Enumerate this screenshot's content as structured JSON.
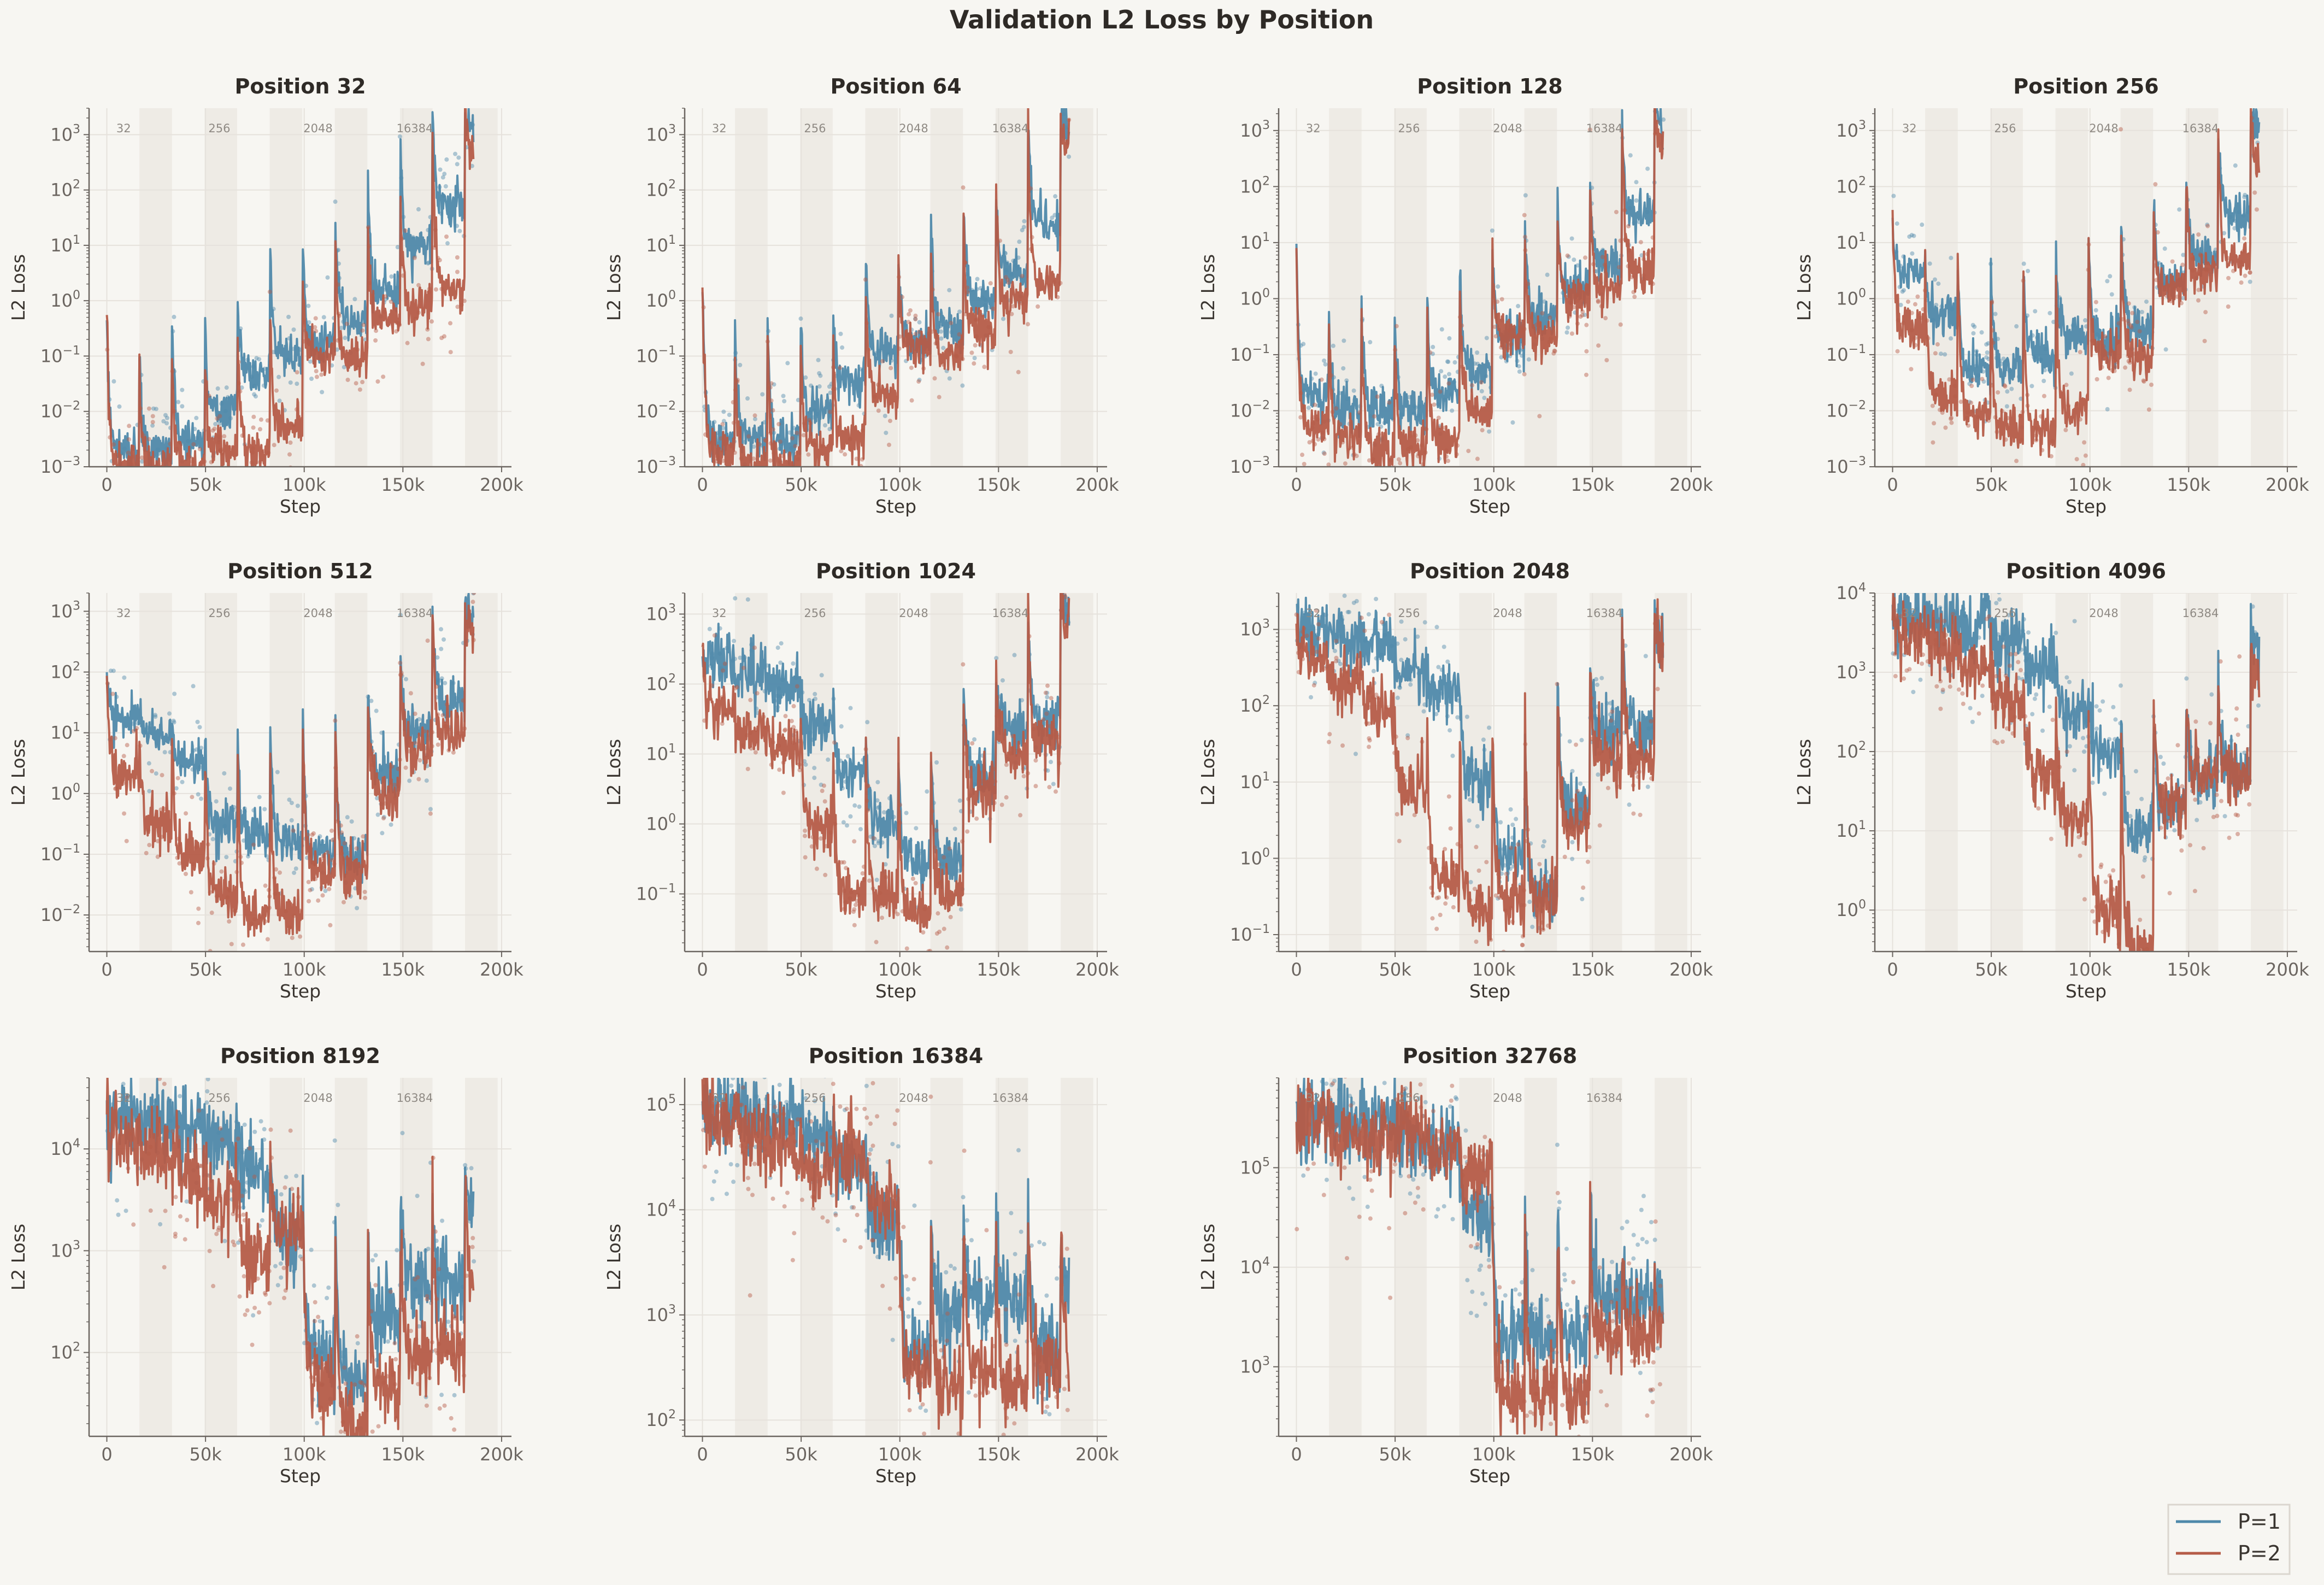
{
  "title": "Validation L2 Loss by Position",
  "legend": [
    {
      "label": "P=1",
      "color": "#4f89aa"
    },
    {
      "label": "P=2",
      "color": "#b55c48"
    }
  ],
  "chart_data": {
    "type": "line",
    "title": "Validation L2 Loss by Position",
    "xlabel": "Step",
    "ylabel": "L2 Loss",
    "x_unit": "thousand steps",
    "xlim": [
      -9,
      205
    ],
    "xticks": [
      0,
      50,
      100,
      150,
      200
    ],
    "xtick_labels": [
      "0",
      "50k",
      "100k",
      "150k",
      "200k"
    ],
    "yscale": "log",
    "grid": true,
    "legend_position": "bottom-right",
    "stage_length": 16.5,
    "data_end": 186,
    "shaded_ranges": [
      [
        16.5,
        33
      ],
      [
        49.5,
        66
      ],
      [
        82.5,
        99
      ],
      [
        115.5,
        132
      ],
      [
        148.5,
        165
      ],
      [
        181.5,
        198
      ]
    ],
    "stage_labels": [
      {
        "text": "32",
        "x": 8.5
      },
      {
        "text": "256",
        "x": 57
      },
      {
        "text": "2048",
        "x": 107
      },
      {
        "text": "16384",
        "x": 156
      }
    ],
    "subplots": [
      {
        "title": "Position 32",
        "ylim": [
          0.001,
          3000
        ],
        "series": [
          {
            "name": "P=1",
            "start": 0.5,
            "stage_levels": [
              0.002,
              0.002,
              0.003,
              0.01,
              0.05,
              0.1,
              0.15,
              0.5,
              1.5,
              10,
              50,
              1000
            ],
            "boundary_peaks": [
              0.1,
              0.4,
              0.5,
              3,
              20,
              30,
              150,
              300,
              1500,
              3000,
              3000
            ]
          },
          {
            "name": "P=2",
            "start": 0.6,
            "stage_levels": [
              0.001,
              0.001,
              0.001,
              0.002,
              0.002,
              0.005,
              0.1,
              0.1,
              0.4,
              0.8,
              1.5,
              500
            ],
            "boundary_peaks": [
              0.07,
              0.1,
              0.3,
              0.5,
              2,
              5,
              30,
              50,
              300,
              2000,
              3000
            ]
          }
        ]
      },
      {
        "title": "Position 64",
        "ylim": [
          0.001,
          3000
        ],
        "series": [
          {
            "name": "P=1",
            "start": 2,
            "stage_levels": [
              0.003,
              0.003,
              0.003,
              0.01,
              0.03,
              0.1,
              0.2,
              0.3,
              1,
              3,
              30,
              1000
            ],
            "boundary_peaks": [
              0.5,
              0.5,
              1,
              1,
              20,
              20,
              80,
              150,
              500,
              1500,
              2000
            ]
          },
          {
            "name": "P=2",
            "start": 1.5,
            "stage_levels": [
              0.002,
              0.001,
              0.001,
              0.002,
              0.003,
              0.02,
              0.15,
              0.1,
              0.3,
              1,
              2,
              500
            ],
            "boundary_peaks": [
              0.1,
              0.2,
              0.5,
              0.5,
              5,
              10,
              30,
              100,
              300,
              1000,
              2000
            ]
          }
        ]
      },
      {
        "title": "Position 128",
        "ylim": [
          0.001,
          2500
        ],
        "series": [
          {
            "name": "P=1",
            "start": 8,
            "stage_levels": [
              0.02,
              0.01,
              0.01,
              0.01,
              0.02,
              0.05,
              0.2,
              0.5,
              1.5,
              4,
              30,
              1000
            ],
            "boundary_peaks": [
              0.5,
              1,
              2,
              3,
              10,
              30,
              60,
              100,
              300,
              2000,
              3000
            ]
          },
          {
            "name": "P=2",
            "start": 8,
            "stage_levels": [
              0.005,
              0.003,
              0.002,
              0.002,
              0.003,
              0.01,
              0.2,
              0.2,
              1,
              1.5,
              3,
              500
            ],
            "boundary_peaks": [
              0.3,
              0.5,
              1,
              2,
              5,
              10,
              30,
              100,
              300,
              1500,
              2500
            ]
          }
        ]
      },
      {
        "title": "Position 256",
        "ylim": [
          0.001,
          2500
        ],
        "series": [
          {
            "name": "P=1",
            "start": 30,
            "stage_levels": [
              3,
              0.5,
              0.05,
              0.05,
              0.1,
              0.2,
              0.2,
              0.3,
              2,
              5,
              30,
              1000
            ],
            "boundary_peaks": [
              5,
              5,
              8,
              10,
              20,
              30,
              100,
              100,
              300,
              1000,
              2000
            ]
          },
          {
            "name": "P=2",
            "start": 30,
            "stage_levels": [
              0.3,
              0.02,
              0.008,
              0.005,
              0.005,
              0.01,
              0.1,
              0.1,
              1.5,
              3,
              5,
              200
            ],
            "boundary_peaks": [
              5,
              5,
              5,
              8,
              10,
              20,
              50,
              100,
              300,
              800,
              2000
            ]
          }
        ]
      },
      {
        "title": "Position 512",
        "ylim": [
          0.0025,
          2000
        ],
        "series": [
          {
            "name": "P=1",
            "start": 80,
            "stage_levels": [
              20,
              10,
              3,
              0.3,
              0.2,
              0.15,
              0.1,
              0.1,
              2,
              10,
              30,
              800
            ],
            "boundary_peaks": [
              20,
              20,
              15,
              20,
              40,
              50,
              50,
              100,
              300,
              1000,
              1500
            ]
          },
          {
            "name": "P=2",
            "start": 80,
            "stage_levels": [
              2,
              0.3,
              0.1,
              0.02,
              0.01,
              0.01,
              0.05,
              0.05,
              1,
              5,
              10,
              500
            ],
            "boundary_peaks": [
              10,
              10,
              8,
              10,
              30,
              50,
              50,
              100,
              300,
              1000,
              1500
            ]
          }
        ]
      },
      {
        "title": "Position 1024",
        "ylim": [
          0.015,
          2000
        ],
        "series": [
          {
            "name": "P=1",
            "start": 300,
            "stage_levels": [
              200,
              150,
              100,
              25,
              5,
              1,
              0.3,
              0.3,
              5,
              20,
              30,
              1000
            ],
            "boundary_peaks": [
              150,
              120,
              80,
              60,
              40,
              30,
              30,
              100,
              300,
              1000,
              1500
            ]
          },
          {
            "name": "P=2",
            "start": 300,
            "stage_levels": [
              50,
              20,
              10,
              1,
              0.1,
              0.1,
              0.05,
              0.1,
              3,
              10,
              15,
              800
            ],
            "boundary_peaks": [
              40,
              30,
              50,
              40,
              30,
              20,
              20,
              100,
              300,
              1000,
              1500
            ]
          }
        ]
      },
      {
        "title": "Position 2048",
        "ylim": [
          0.06,
          3000
        ],
        "series": [
          {
            "name": "P=1",
            "start": 1500,
            "stage_levels": [
              1000,
              800,
              600,
              300,
              150,
              10,
              1,
              0.3,
              5,
              50,
              50,
              500
            ],
            "boundary_peaks": [
              1000,
              700,
              500,
              400,
              300,
              100,
              200,
              300,
              800,
              1500,
              2000
            ]
          },
          {
            "name": "P=2",
            "start": 1500,
            "stage_levels": [
              400,
              200,
              100,
              8,
              0.5,
              0.2,
              0.3,
              0.3,
              3,
              20,
              20,
              400
            ],
            "boundary_peaks": [
              300,
              200,
              100,
              100,
              100,
              200,
              300,
              500,
              1000,
              1500,
              2000
            ]
          }
        ]
      },
      {
        "title": "Position 4096",
        "ylim": [
          0.3,
          10000
        ],
        "series": [
          {
            "name": "P=1",
            "start": 6000,
            "stage_levels": [
              5000,
              4500,
              4000,
              2500,
              1000,
              300,
              100,
              10,
              20,
              50,
              60,
              1500
            ],
            "boundary_peaks": [
              5000,
              4000,
              3500,
              2500,
              1500,
              1000,
              1000,
              800,
              500,
              800,
              6000
            ]
          },
          {
            "name": "P=2",
            "start": 6000,
            "stage_levels": [
              3000,
              2000,
              1000,
              400,
              50,
              15,
              1,
              0.3,
              20,
              50,
              50,
              800
            ],
            "boundary_peaks": [
              3000,
              2000,
              1500,
              1500,
              1000,
              1000,
              1000,
              800,
              500,
              800,
              3000
            ]
          }
        ]
      },
      {
        "title": "Position 8192",
        "ylim": [
          15,
          50000
        ],
        "series": [
          {
            "name": "P=1",
            "start": 22000,
            "stage_levels": [
              20000,
              19000,
              17000,
              12000,
              6000,
              1500,
              100,
              50,
              200,
              500,
              500,
              2000
            ],
            "boundary_peaks": [
              20000,
              20000,
              15000,
              12000,
              10000,
              8000,
              8000,
              3000,
              5000,
              5000,
              6000
            ]
          },
          {
            "name": "P=2",
            "start": 20000,
            "stage_levels": [
              12000,
              8000,
              5000,
              3000,
              800,
              1500,
              50,
              20,
              50,
              100,
              100,
              500
            ],
            "boundary_peaks": [
              15000,
              10000,
              8000,
              6000,
              10000,
              8000,
              5000,
              3000,
              3000,
              4000,
              5000
            ]
          }
        ]
      },
      {
        "title": "Position 16384",
        "ylim": [
          70,
          180000
        ],
        "series": [
          {
            "name": "P=1",
            "start": 90000,
            "stage_levels": [
              80000,
              75000,
              70000,
              50000,
              30000,
              8000,
              500,
              1000,
              1500,
              1500,
              500,
              2000
            ],
            "boundary_peaks": [
              90000,
              85000,
              80000,
              60000,
              50000,
              30000,
              20000,
              20000,
              20000,
              15000,
              5000
            ]
          },
          {
            "name": "P=2",
            "start": 85000,
            "stage_levels": [
              70000,
              50000,
              40000,
              25000,
              35000,
              10000,
              300,
              200,
              300,
              200,
              300,
              500
            ],
            "boundary_peaks": [
              85000,
              60000,
              50000,
              40000,
              40000,
              30000,
              20000,
              20000,
              15000,
              10000,
              5000
            ]
          }
        ]
      },
      {
        "title": "Position 32768",
        "ylim": [
          200,
          800000
        ],
        "series": [
          {
            "name": "P=1",
            "start": 350000,
            "stage_levels": [
              330000,
              300000,
              280000,
              250000,
              180000,
              30000,
              2000,
              2000,
              2000,
              5000,
              5000,
              5000
            ],
            "boundary_peaks": [
              350000,
              320000,
              300000,
              280000,
              200000,
              100000,
              100000,
              100000,
              100000,
              10000,
              10000
            ]
          },
          {
            "name": "P=2",
            "start": 350000,
            "stage_levels": [
              300000,
              200000,
              180000,
              250000,
              150000,
              80000,
              500,
              500,
              500,
              2000,
              2000,
              2000
            ],
            "boundary_peaks": [
              340000,
              250000,
              200000,
              280000,
              150000,
              100000,
              80000,
              80000,
              80000,
              10000,
              10000
            ]
          }
        ]
      }
    ]
  }
}
